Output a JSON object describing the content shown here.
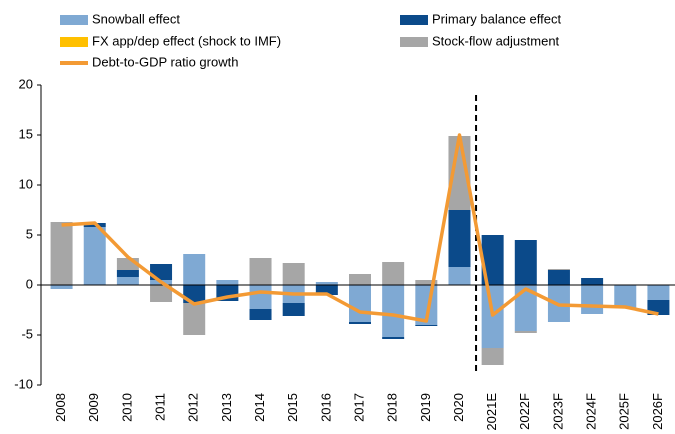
{
  "chart_data": {
    "type": "bar",
    "categories": [
      "2008",
      "2009",
      "2010",
      "2011",
      "2012",
      "2013",
      "2014",
      "2015",
      "2016",
      "2017",
      "2018",
      "2019",
      "2020",
      "2021E",
      "2022F",
      "2023F",
      "2024F",
      "2025F",
      "2026F"
    ],
    "series": [
      {
        "name": "Snowball effect",
        "color": "#7fa9d3",
        "values": [
          -0.4,
          5.8,
          0.8,
          0.5,
          3.1,
          0.5,
          -2.4,
          -1.8,
          0.3,
          -3.7,
          -5.2,
          -4.0,
          1.8,
          -6.3,
          -4.6,
          -3.7,
          -2.9,
          -2.3,
          -1.5
        ]
      },
      {
        "name": "Primary balance effect",
        "color": "#0b4a8a",
        "values": [
          0,
          0.4,
          0.7,
          1.6,
          -1.8,
          -1.6,
          -1.1,
          -1.3,
          -1.0,
          -0.2,
          -0.2,
          -0.1,
          5.7,
          5.0,
          4.5,
          1.5,
          0.7,
          0,
          -1.5
        ]
      },
      {
        "name": "FX app/dep effect (shock to IMF)",
        "color": "#ffc000",
        "values": [
          0,
          0,
          0,
          0,
          0,
          0,
          0,
          0,
          0,
          0,
          0,
          0,
          0,
          0,
          0,
          0,
          0,
          0,
          0
        ]
      },
      {
        "name": "Stock-flow adjustment",
        "color": "#a6a6a6",
        "values": [
          6.3,
          0,
          1.2,
          -1.7,
          -3.2,
          0,
          2.7,
          2.2,
          0,
          1.1,
          2.3,
          0.5,
          7.4,
          -1.7,
          -0.2,
          0.1,
          0,
          0,
          0
        ]
      },
      {
        "name": "Debt-to-GDP ratio growth",
        "color": "#f39a34",
        "type": "line",
        "values": [
          6.0,
          6.2,
          2.8,
          0.3,
          -1.9,
          -1.2,
          -0.7,
          -0.9,
          -0.9,
          -2.7,
          -3.0,
          -3.6,
          15.0,
          -3.0,
          -0.4,
          -2.0,
          -2.1,
          -2.2,
          -2.9
        ]
      }
    ],
    "ylim": [
      -10,
      20
    ],
    "yticks": [
      -10,
      -5,
      0,
      5,
      10,
      15,
      20
    ],
    "grid": false
  }
}
